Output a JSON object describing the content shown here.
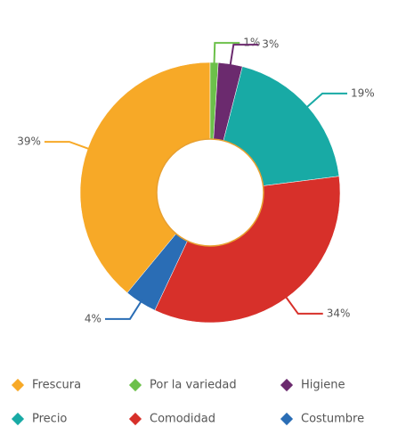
{
  "chart_data": {
    "type": "donut",
    "categories": [
      "Frescura",
      "Por la variedad",
      "Higiene",
      "Precio",
      "Comodidad",
      "Costumbre"
    ],
    "values": [
      39,
      1,
      3,
      19,
      34,
      4
    ],
    "value_labels": [
      "39%",
      "1%",
      "3%",
      "19%",
      "34%",
      "4%"
    ],
    "colors": [
      "#f7a927",
      "#6cc04a",
      "#6b2a6e",
      "#18aaa5",
      "#d7302a",
      "#2a6db5"
    ],
    "legend": "bottom"
  }
}
